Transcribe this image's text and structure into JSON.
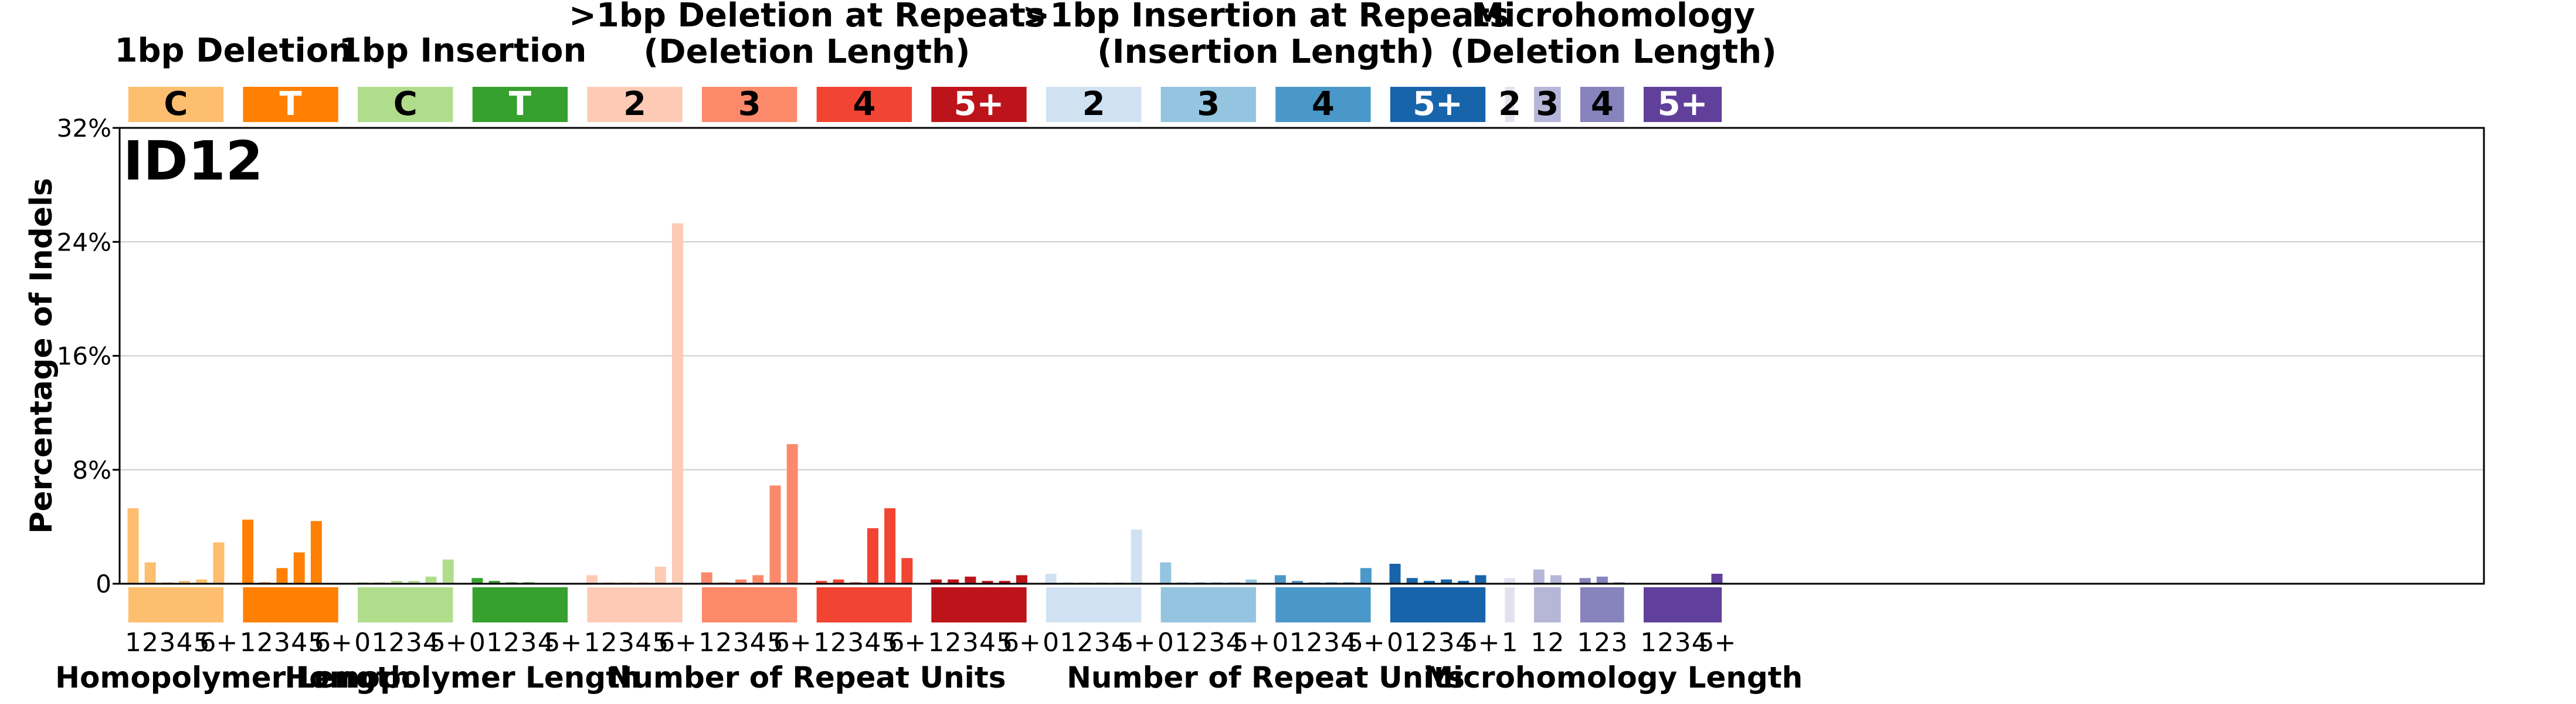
{
  "chart_data": {
    "type": "bar",
    "signature": "ID12",
    "ylabel": "Percentage of Indels",
    "ylim": [
      0,
      32
    ],
    "yticks": [
      {
        "value": 0,
        "label": "0"
      },
      {
        "value": 8,
        "label": "8%"
      },
      {
        "value": 16,
        "label": "16%"
      },
      {
        "value": 24,
        "label": "24%"
      },
      {
        "value": 32,
        "label": "32%"
      }
    ],
    "grid": true,
    "group_titles": [
      {
        "lines": [
          "1bp Deletion"
        ],
        "span": [
          0,
          1
        ]
      },
      {
        "lines": [
          "1bp Insertion"
        ],
        "span": [
          2,
          3
        ]
      },
      {
        "lines": [
          ">1bp Deletion at Repeats",
          "(Deletion Length)"
        ],
        "span": [
          4,
          7
        ]
      },
      {
        "lines": [
          ">1bp Insertion at Repeats",
          "(Insertion Length)"
        ],
        "span": [
          8,
          11
        ]
      },
      {
        "lines": [
          "Microhomology",
          "(Deletion Length)"
        ],
        "span": [
          12,
          15
        ]
      }
    ],
    "x_subtitles": [
      {
        "text": "Homopolymer Length",
        "span": [
          0,
          1
        ]
      },
      {
        "text": "Homopolymer Length",
        "span": [
          2,
          3
        ]
      },
      {
        "text": "Number of Repeat Units",
        "span": [
          4,
          7
        ]
      },
      {
        "text": "Number of Repeat Units",
        "span": [
          8,
          11
        ]
      },
      {
        "text": "Microhomology Length",
        "span": [
          12,
          15
        ]
      }
    ],
    "categories": [
      {
        "label": "C",
        "color": "#fdbe6f",
        "text_color": "#000000",
        "ticks": [
          "1",
          "2",
          "3",
          "4",
          "5",
          "6+"
        ],
        "values": [
          5.3,
          1.5,
          0.1,
          0.2,
          0.3,
          2.9
        ]
      },
      {
        "label": "T",
        "color": "#ff8002",
        "text_color": "#ffffff",
        "ticks": [
          "1",
          "2",
          "3",
          "4",
          "5",
          "6+"
        ],
        "values": [
          4.5,
          0.1,
          1.1,
          2.2,
          4.4,
          0.0
        ]
      },
      {
        "label": "C",
        "color": "#b0dd8b",
        "text_color": "#000000",
        "ticks": [
          "0",
          "1",
          "2",
          "3",
          "4",
          "5+"
        ],
        "values": [
          0.1,
          0.1,
          0.2,
          0.2,
          0.5,
          1.7
        ]
      },
      {
        "label": "T",
        "color": "#36a12e",
        "text_color": "#ffffff",
        "ticks": [
          "0",
          "1",
          "2",
          "3",
          "4",
          "5+"
        ],
        "values": [
          0.4,
          0.2,
          0.1,
          0.1,
          0.0,
          0.0
        ]
      },
      {
        "label": "2",
        "color": "#fdcab5",
        "text_color": "#000000",
        "ticks": [
          "1",
          "2",
          "3",
          "4",
          "5",
          "6+"
        ],
        "values": [
          0.6,
          0.1,
          0.1,
          0.1,
          1.2,
          25.3
        ]
      },
      {
        "label": "3",
        "color": "#fc8a6a",
        "text_color": "#000000",
        "ticks": [
          "1",
          "2",
          "3",
          "4",
          "5",
          "6+"
        ],
        "values": [
          0.8,
          0.1,
          0.3,
          0.6,
          6.9,
          9.8
        ]
      },
      {
        "label": "4",
        "color": "#f14432",
        "text_color": "#000000",
        "ticks": [
          "1",
          "2",
          "3",
          "4",
          "5",
          "6+"
        ],
        "values": [
          0.2,
          0.3,
          0.1,
          3.9,
          5.3,
          1.8
        ]
      },
      {
        "label": "5+",
        "color": "#bc141a",
        "text_color": "#ffffff",
        "ticks": [
          "1",
          "2",
          "3",
          "4",
          "5",
          "6+"
        ],
        "values": [
          0.3,
          0.3,
          0.5,
          0.2,
          0.2,
          0.6
        ]
      },
      {
        "label": "2",
        "color": "#d0e1f2",
        "text_color": "#000000",
        "ticks": [
          "0",
          "1",
          "2",
          "3",
          "4",
          "5+"
        ],
        "values": [
          0.7,
          0.1,
          0.1,
          0.1,
          0.1,
          3.8
        ]
      },
      {
        "label": "3",
        "color": "#94c4df",
        "text_color": "#000000",
        "ticks": [
          "0",
          "1",
          "2",
          "3",
          "4",
          "5+"
        ],
        "values": [
          1.5,
          0.1,
          0.1,
          0.1,
          0.1,
          0.3
        ]
      },
      {
        "label": "4",
        "color": "#4a98c9",
        "text_color": "#000000",
        "ticks": [
          "0",
          "1",
          "2",
          "3",
          "4",
          "5+"
        ],
        "values": [
          0.6,
          0.2,
          0.1,
          0.1,
          0.1,
          1.1
        ]
      },
      {
        "label": "5+",
        "color": "#1764ab",
        "text_color": "#ffffff",
        "ticks": [
          "0",
          "1",
          "2",
          "3",
          "4",
          "5+"
        ],
        "values": [
          1.4,
          0.4,
          0.2,
          0.3,
          0.2,
          0.6
        ]
      },
      {
        "label": "2",
        "color": "#e2e2ef",
        "text_color": "#000000",
        "ticks": [
          "1"
        ],
        "values": [
          0.4
        ]
      },
      {
        "label": "3",
        "color": "#b6b6d8",
        "text_color": "#000000",
        "ticks": [
          "1",
          "2"
        ],
        "values": [
          1.0,
          0.6
        ]
      },
      {
        "label": "4",
        "color": "#8683bd",
        "text_color": "#000000",
        "ticks": [
          "1",
          "2",
          "3"
        ],
        "values": [
          0.4,
          0.5,
          0.1
        ]
      },
      {
        "label": "5+",
        "color": "#61409b",
        "text_color": "#ffffff",
        "ticks": [
          "1",
          "2",
          "3",
          "4",
          "5+"
        ],
        "values": [
          0.0,
          0.0,
          0.0,
          0.0,
          0.7
        ]
      }
    ]
  }
}
